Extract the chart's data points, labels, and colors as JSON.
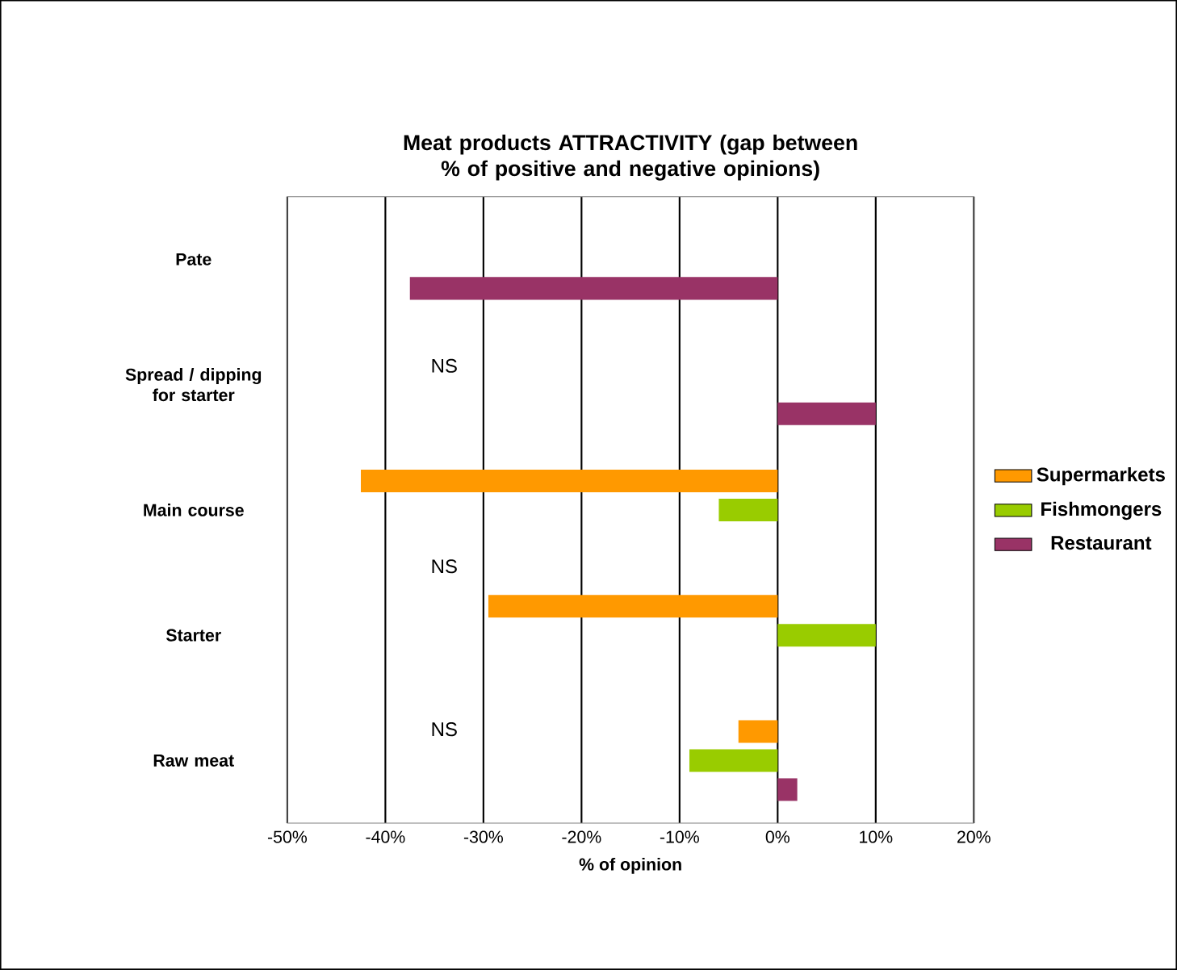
{
  "chart_data": {
    "type": "bar",
    "orientation": "horizontal",
    "title": "Meat products ATTRACTIVITY (gap between % of positive and negative opinions)",
    "xlabel": "% of opinion",
    "categories": [
      "Pate",
      "Spread / dipping for starter",
      "Main course",
      "Starter",
      "Raw meat"
    ],
    "series": [
      {
        "name": "Supermarkets",
        "color": "#ff9900",
        "values": [
          null,
          null,
          -42.5,
          -29.5,
          -4
        ]
      },
      {
        "name": "Fishmongers",
        "color": "#99cc00",
        "values": [
          null,
          null,
          -6,
          10,
          -9
        ]
      },
      {
        "name": "Restaurant",
        "color": "#993366",
        "values": [
          -37.5,
          10,
          null,
          null,
          2
        ]
      }
    ],
    "xlim": [
      -50,
      20
    ],
    "xticks": [
      {
        "value": -50,
        "label": "-50%"
      },
      {
        "value": -40,
        "label": "-40%"
      },
      {
        "value": -30,
        "label": "-30%"
      },
      {
        "value": -20,
        "label": "-20%"
      },
      {
        "value": -10,
        "label": "-10%"
      },
      {
        "value": 0,
        "label": "0%"
      },
      {
        "value": 10,
        "label": "10%"
      },
      {
        "value": 20,
        "label": "20%"
      }
    ],
    "grid": "x",
    "legend": "right",
    "annotations": [
      "NS",
      "NS",
      "NS"
    ]
  }
}
